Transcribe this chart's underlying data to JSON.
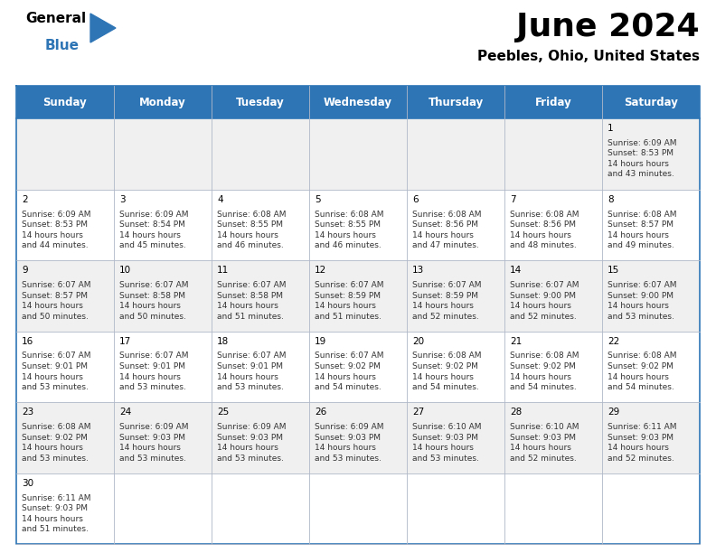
{
  "title": "June 2024",
  "subtitle": "Peebles, Ohio, United States",
  "days_of_week": [
    "Sunday",
    "Monday",
    "Tuesday",
    "Wednesday",
    "Thursday",
    "Friday",
    "Saturday"
  ],
  "header_bg": "#2e75b6",
  "header_text": "#ffffff",
  "row_bg_even": "#f0f0f0",
  "row_bg_odd": "#ffffff",
  "white_bg": "#ffffff",
  "border_color": "#2e75b6",
  "cell_border": "#b0b8c8",
  "day_num_color": "#000000",
  "text_color": "#333333",
  "calendar_data": [
    {
      "day": 1,
      "col": 6,
      "row": 0,
      "sunrise": "6:09 AM",
      "sunset": "8:53 PM",
      "daylight": "14 hours and 43 minutes."
    },
    {
      "day": 2,
      "col": 0,
      "row": 1,
      "sunrise": "6:09 AM",
      "sunset": "8:53 PM",
      "daylight": "14 hours and 44 minutes."
    },
    {
      "day": 3,
      "col": 1,
      "row": 1,
      "sunrise": "6:09 AM",
      "sunset": "8:54 PM",
      "daylight": "14 hours and 45 minutes."
    },
    {
      "day": 4,
      "col": 2,
      "row": 1,
      "sunrise": "6:08 AM",
      "sunset": "8:55 PM",
      "daylight": "14 hours and 46 minutes."
    },
    {
      "day": 5,
      "col": 3,
      "row": 1,
      "sunrise": "6:08 AM",
      "sunset": "8:55 PM",
      "daylight": "14 hours and 46 minutes."
    },
    {
      "day": 6,
      "col": 4,
      "row": 1,
      "sunrise": "6:08 AM",
      "sunset": "8:56 PM",
      "daylight": "14 hours and 47 minutes."
    },
    {
      "day": 7,
      "col": 5,
      "row": 1,
      "sunrise": "6:08 AM",
      "sunset": "8:56 PM",
      "daylight": "14 hours and 48 minutes."
    },
    {
      "day": 8,
      "col": 6,
      "row": 1,
      "sunrise": "6:08 AM",
      "sunset": "8:57 PM",
      "daylight": "14 hours and 49 minutes."
    },
    {
      "day": 9,
      "col": 0,
      "row": 2,
      "sunrise": "6:07 AM",
      "sunset": "8:57 PM",
      "daylight": "14 hours and 50 minutes."
    },
    {
      "day": 10,
      "col": 1,
      "row": 2,
      "sunrise": "6:07 AM",
      "sunset": "8:58 PM",
      "daylight": "14 hours and 50 minutes."
    },
    {
      "day": 11,
      "col": 2,
      "row": 2,
      "sunrise": "6:07 AM",
      "sunset": "8:58 PM",
      "daylight": "14 hours and 51 minutes."
    },
    {
      "day": 12,
      "col": 3,
      "row": 2,
      "sunrise": "6:07 AM",
      "sunset": "8:59 PM",
      "daylight": "14 hours and 51 minutes."
    },
    {
      "day": 13,
      "col": 4,
      "row": 2,
      "sunrise": "6:07 AM",
      "sunset": "8:59 PM",
      "daylight": "14 hours and 52 minutes."
    },
    {
      "day": 14,
      "col": 5,
      "row": 2,
      "sunrise": "6:07 AM",
      "sunset": "9:00 PM",
      "daylight": "14 hours and 52 minutes."
    },
    {
      "day": 15,
      "col": 6,
      "row": 2,
      "sunrise": "6:07 AM",
      "sunset": "9:00 PM",
      "daylight": "14 hours and 53 minutes."
    },
    {
      "day": 16,
      "col": 0,
      "row": 3,
      "sunrise": "6:07 AM",
      "sunset": "9:01 PM",
      "daylight": "14 hours and 53 minutes."
    },
    {
      "day": 17,
      "col": 1,
      "row": 3,
      "sunrise": "6:07 AM",
      "sunset": "9:01 PM",
      "daylight": "14 hours and 53 minutes."
    },
    {
      "day": 18,
      "col": 2,
      "row": 3,
      "sunrise": "6:07 AM",
      "sunset": "9:01 PM",
      "daylight": "14 hours and 53 minutes."
    },
    {
      "day": 19,
      "col": 3,
      "row": 3,
      "sunrise": "6:07 AM",
      "sunset": "9:02 PM",
      "daylight": "14 hours and 54 minutes."
    },
    {
      "day": 20,
      "col": 4,
      "row": 3,
      "sunrise": "6:08 AM",
      "sunset": "9:02 PM",
      "daylight": "14 hours and 54 minutes."
    },
    {
      "day": 21,
      "col": 5,
      "row": 3,
      "sunrise": "6:08 AM",
      "sunset": "9:02 PM",
      "daylight": "14 hours and 54 minutes."
    },
    {
      "day": 22,
      "col": 6,
      "row": 3,
      "sunrise": "6:08 AM",
      "sunset": "9:02 PM",
      "daylight": "14 hours and 54 minutes."
    },
    {
      "day": 23,
      "col": 0,
      "row": 4,
      "sunrise": "6:08 AM",
      "sunset": "9:02 PM",
      "daylight": "14 hours and 53 minutes."
    },
    {
      "day": 24,
      "col": 1,
      "row": 4,
      "sunrise": "6:09 AM",
      "sunset": "9:03 PM",
      "daylight": "14 hours and 53 minutes."
    },
    {
      "day": 25,
      "col": 2,
      "row": 4,
      "sunrise": "6:09 AM",
      "sunset": "9:03 PM",
      "daylight": "14 hours and 53 minutes."
    },
    {
      "day": 26,
      "col": 3,
      "row": 4,
      "sunrise": "6:09 AM",
      "sunset": "9:03 PM",
      "daylight": "14 hours and 53 minutes."
    },
    {
      "day": 27,
      "col": 4,
      "row": 4,
      "sunrise": "6:10 AM",
      "sunset": "9:03 PM",
      "daylight": "14 hours and 53 minutes."
    },
    {
      "day": 28,
      "col": 5,
      "row": 4,
      "sunrise": "6:10 AM",
      "sunset": "9:03 PM",
      "daylight": "14 hours and 52 minutes."
    },
    {
      "day": 29,
      "col": 6,
      "row": 4,
      "sunrise": "6:11 AM",
      "sunset": "9:03 PM",
      "daylight": "14 hours and 52 minutes."
    },
    {
      "day": 30,
      "col": 0,
      "row": 5,
      "sunrise": "6:11 AM",
      "sunset": "9:03 PM",
      "daylight": "14 hours and 51 minutes."
    }
  ]
}
